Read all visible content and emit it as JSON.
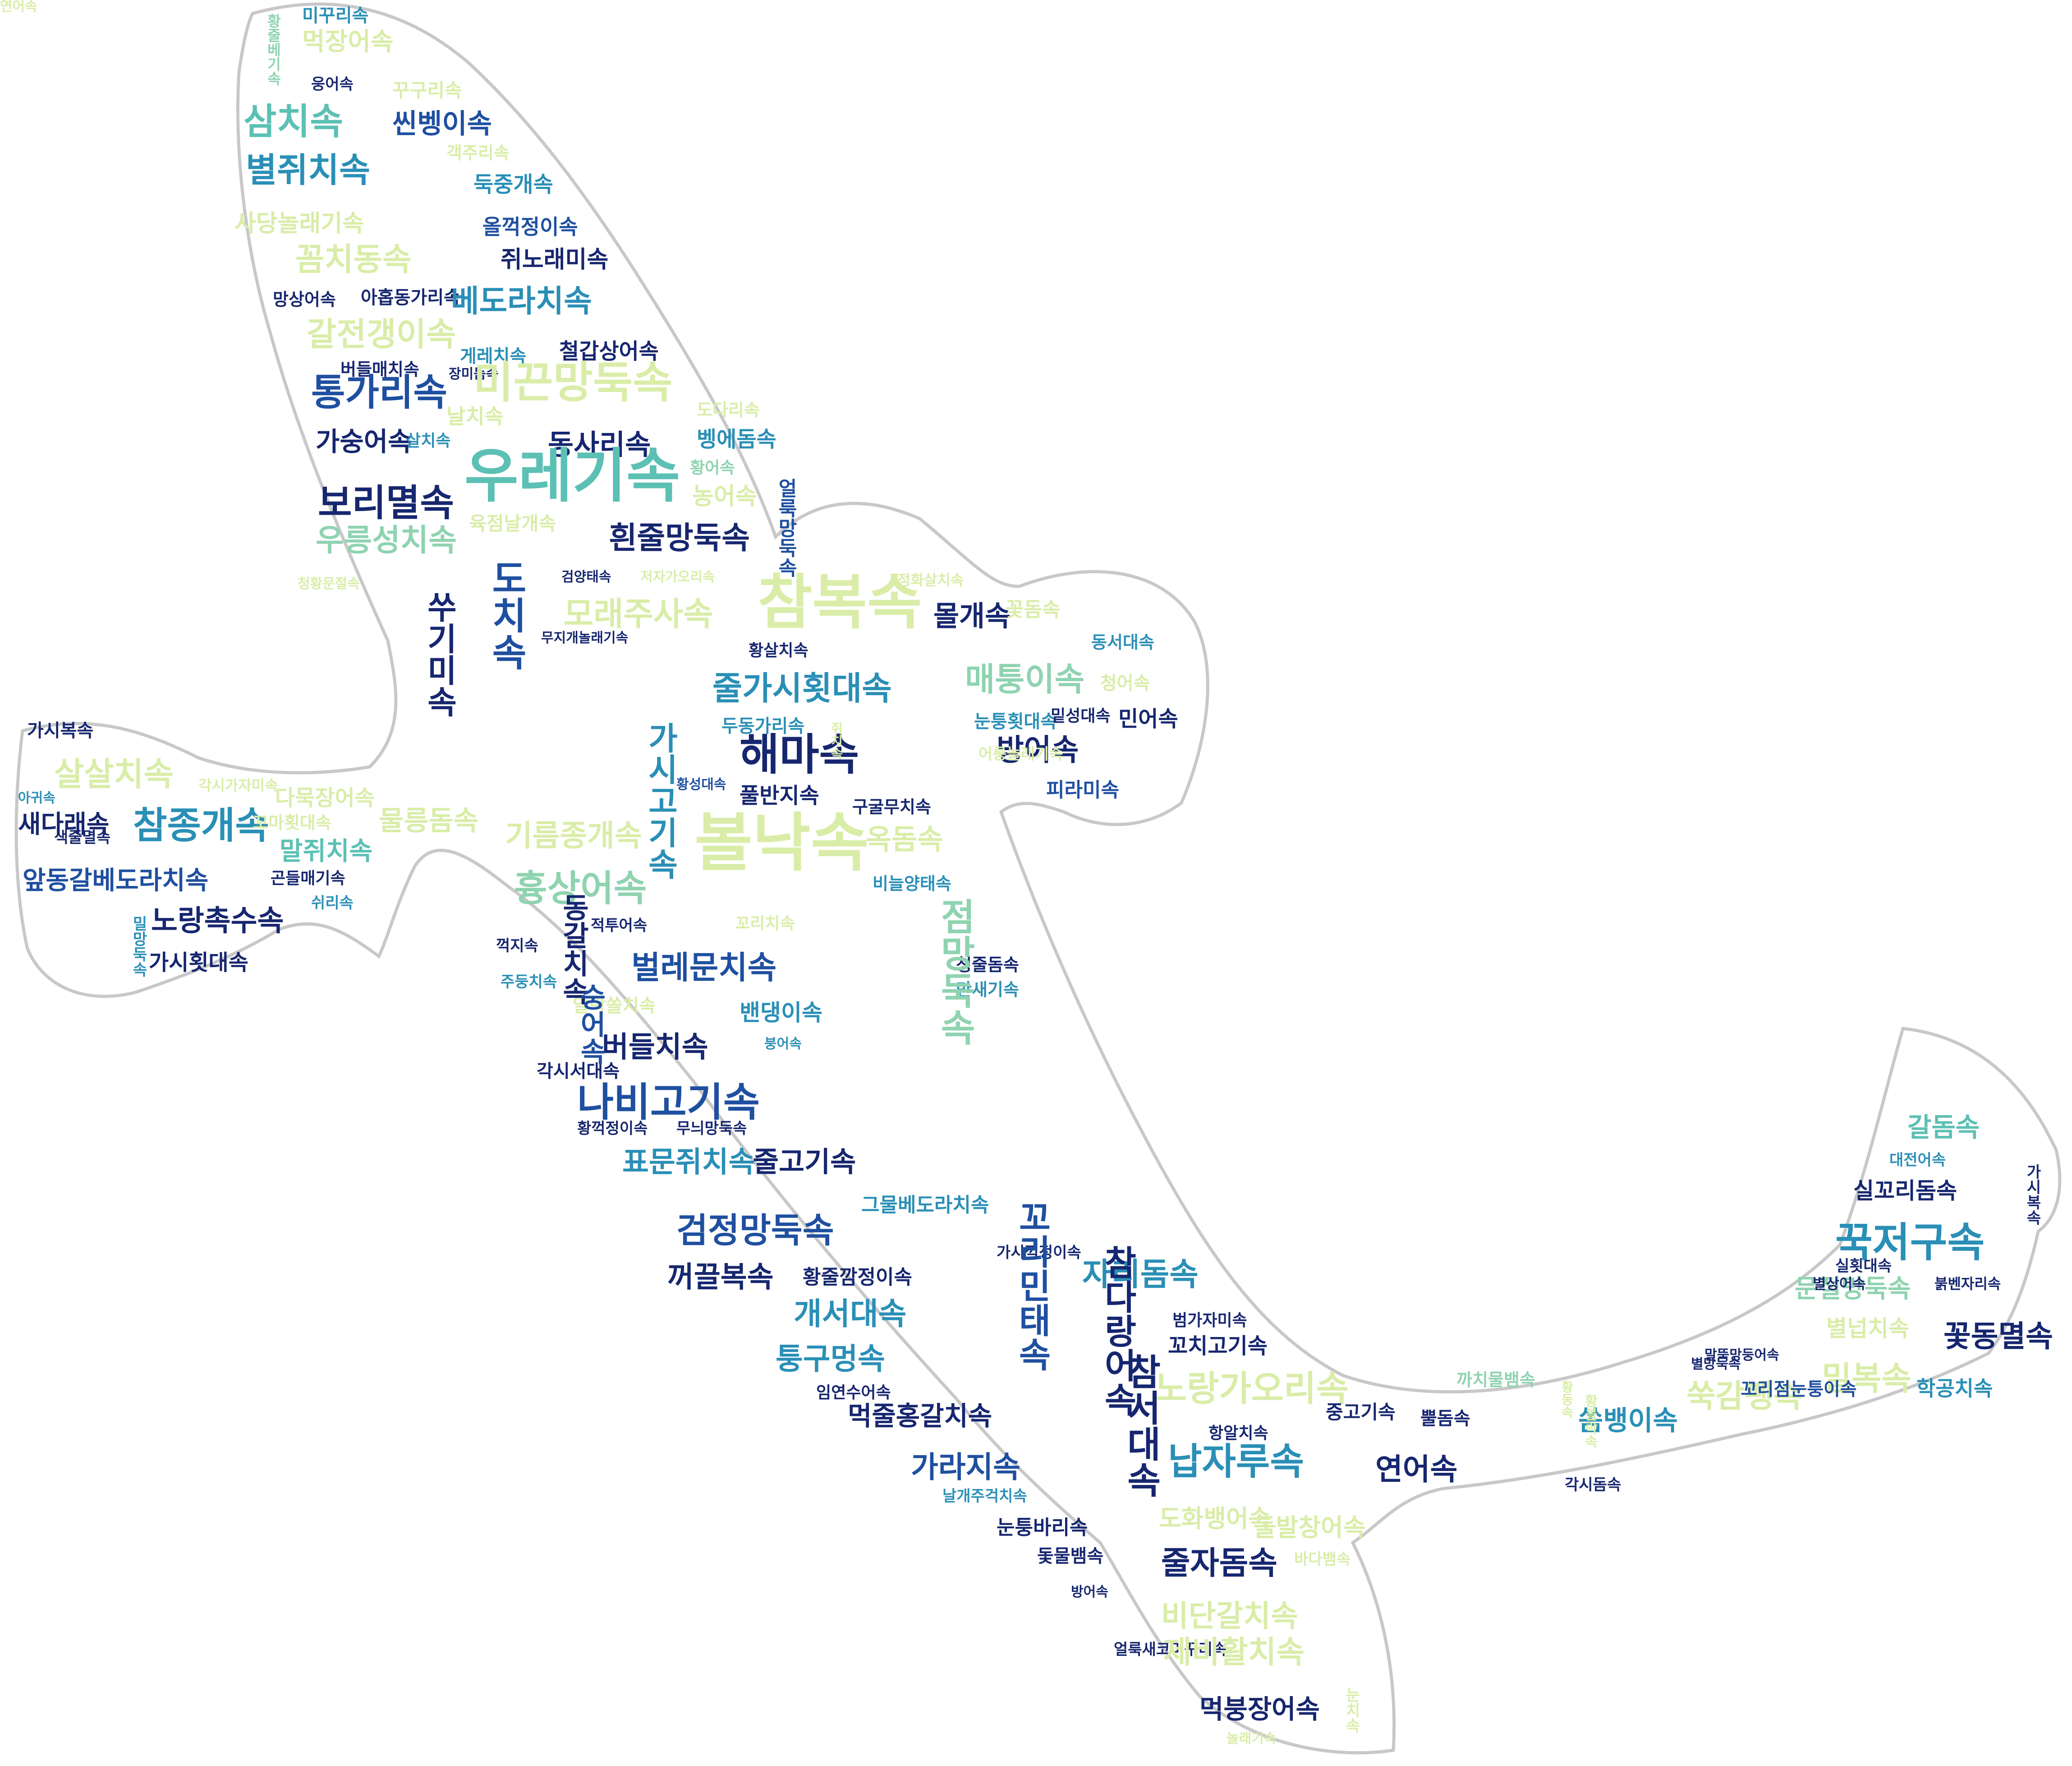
{
  "palette": {
    "navy": "#16266f",
    "blue": "#1f4fa0",
    "teal": "#2a8fb6",
    "mint": "#5cc0b4",
    "green": "#8fd3b0",
    "pale": "#d9eda8"
  },
  "words": [
    {
      "t": "미꾸리속",
      "c": "teal"
    },
    {
      "t": "먹장어속",
      "c": "pale"
    },
    {
      "t": "황줄베기속",
      "c": "green"
    },
    {
      "t": "웅어속",
      "c": "navy"
    },
    {
      "t": "꾸구리속",
      "c": "pale"
    },
    {
      "t": "삼치속",
      "c": "mint"
    },
    {
      "t": "씬벵이속",
      "c": "blue"
    },
    {
      "t": "별쥐치속",
      "c": "teal"
    },
    {
      "t": "객주리속",
      "c": "pale"
    },
    {
      "t": "둑중개속",
      "c": "teal"
    },
    {
      "t": "사당놀래기속",
      "c": "pale"
    },
    {
      "t": "올꺽정이속",
      "c": "blue"
    },
    {
      "t": "꼼치동속",
      "c": "pale"
    },
    {
      "t": "쥐노래미속",
      "c": "navy"
    },
    {
      "t": "망상어속",
      "c": "navy"
    },
    {
      "t": "아홉동가리속",
      "c": "navy"
    },
    {
      "t": "베도라치속",
      "c": "teal"
    },
    {
      "t": "갈전갱이속",
      "c": "pale"
    },
    {
      "t": "버들매치속",
      "c": "navy"
    },
    {
      "t": "게레치속",
      "c": "teal"
    },
    {
      "t": "철갑상어속",
      "c": "navy"
    },
    {
      "t": "장미돔속",
      "c": "navy"
    },
    {
      "t": "통가리속",
      "c": "blue"
    },
    {
      "t": "미끈망둑속",
      "c": "pale"
    },
    {
      "t": "날치속",
      "c": "pale"
    },
    {
      "t": "도다리속",
      "c": "pale"
    },
    {
      "t": "가숭어속",
      "c": "navy"
    },
    {
      "t": "살치속",
      "c": "teal"
    },
    {
      "t": "동사리속",
      "c": "navy"
    },
    {
      "t": "벵에돔속",
      "c": "teal"
    },
    {
      "t": "황어속",
      "c": "green"
    },
    {
      "t": "우레기속",
      "c": "mint"
    },
    {
      "t": "보리멸속",
      "c": "navy"
    },
    {
      "t": "농어속",
      "c": "pale"
    },
    {
      "t": "우릉성치속",
      "c": "green"
    },
    {
      "t": "육점날개속",
      "c": "pale"
    },
    {
      "t": "흰줄망둑속",
      "c": "navy"
    },
    {
      "t": "검양태속",
      "c": "navy"
    },
    {
      "t": "저자가오리속",
      "c": "pale"
    },
    {
      "t": "청황문절속",
      "c": "pale"
    },
    {
      "t": "얼룩망둑속",
      "c": "blue"
    },
    {
      "t": "모래주사속",
      "c": "pale"
    },
    {
      "t": "참복속",
      "c": "pale"
    },
    {
      "t": "정화살치속",
      "c": "pale"
    },
    {
      "t": "몰개속",
      "c": "navy"
    },
    {
      "t": "꽃돔속",
      "c": "pale"
    },
    {
      "t": "동서대속",
      "c": "teal"
    },
    {
      "t": "무지개놀래기속",
      "c": "navy"
    },
    {
      "t": "황살치속",
      "c": "navy"
    },
    {
      "t": "줄가시횟대속",
      "c": "teal"
    },
    {
      "t": "매퉁이속",
      "c": "green"
    },
    {
      "t": "청어속",
      "c": "pale"
    },
    {
      "t": "눈퉁횟대속",
      "c": "teal"
    },
    {
      "t": "밑성대속",
      "c": "navy"
    },
    {
      "t": "민어속",
      "c": "navy"
    },
    {
      "t": "두동가리속",
      "c": "teal"
    },
    {
      "t": "해마속",
      "c": "navy"
    },
    {
      "t": "방어속",
      "c": "navy"
    },
    {
      "t": "어룽놀래기속",
      "c": "pale"
    },
    {
      "t": "피라미속",
      "c": "blue"
    },
    {
      "t": "황성대속",
      "c": "blue"
    },
    {
      "t": "풀반지속",
      "c": "navy"
    },
    {
      "t": "구굴무치속",
      "c": "navy"
    },
    {
      "t": "가시복속",
      "c": "navy"
    },
    {
      "t": "살살치속",
      "c": "pale"
    },
    {
      "t": "각시가자미속",
      "c": "pale"
    },
    {
      "t": "다묵장어속",
      "c": "pale"
    },
    {
      "t": "아귀속",
      "c": "teal"
    },
    {
      "t": "새다래속",
      "c": "navy"
    },
    {
      "t": "참종개속",
      "c": "teal"
    },
    {
      "t": "색줄멸속",
      "c": "navy"
    },
    {
      "t": "꼬마횟대속",
      "c": "pale"
    },
    {
      "t": "말쥐치속",
      "c": "mint"
    },
    {
      "t": "물릉돔속",
      "c": "pale"
    },
    {
      "t": "기름종개속",
      "c": "pale"
    },
    {
      "t": "볼낙속",
      "c": "pale"
    },
    {
      "t": "옥돔속",
      "c": "pale"
    },
    {
      "t": "앞동갈베도라치속",
      "c": "blue"
    },
    {
      "t": "곤들매기속",
      "c": "navy"
    },
    {
      "t": "노랑촉수속",
      "c": "navy"
    },
    {
      "t": "쉬리속",
      "c": "teal"
    },
    {
      "t": "가시횟대속",
      "c": "navy"
    },
    {
      "t": "흉상어속",
      "c": "green"
    },
    {
      "t": "비늘양태속",
      "c": "teal"
    },
    {
      "t": "꼬리치속",
      "c": "pale"
    },
    {
      "t": "적투어속",
      "c": "navy"
    },
    {
      "t": "꺽지속",
      "c": "navy"
    },
    {
      "t": "벌레문치속",
      "c": "blue"
    },
    {
      "t": "청줄돔속",
      "c": "navy"
    },
    {
      "t": "만새기속",
      "c": "teal"
    },
    {
      "t": "주둥치속",
      "c": "teal"
    },
    {
      "t": "알락쏠치속",
      "c": "pale"
    },
    {
      "t": "밴댕이속",
      "c": "teal"
    },
    {
      "t": "버들치속",
      "c": "navy"
    },
    {
      "t": "붕어속",
      "c": "teal"
    },
    {
      "t": "각시서대속",
      "c": "navy"
    },
    {
      "t": "나비고기속",
      "c": "blue"
    },
    {
      "t": "황꺽정이속",
      "c": "navy"
    },
    {
      "t": "무늬망둑속",
      "c": "navy"
    },
    {
      "t": "표문쥐치속",
      "c": "teal"
    },
    {
      "t": "줄고기속",
      "c": "navy"
    },
    {
      "t": "그물베도라치속",
      "c": "teal"
    },
    {
      "t": "검정망둑속",
      "c": "blue"
    },
    {
      "t": "꺼끌복속",
      "c": "navy"
    },
    {
      "t": "황줄깜정이속",
      "c": "navy"
    },
    {
      "t": "가시꺽정이속",
      "c": "navy"
    },
    {
      "t": "자리돔속",
      "c": "teal"
    },
    {
      "t": "개서대속",
      "c": "teal"
    },
    {
      "t": "범가자미속",
      "c": "navy"
    },
    {
      "t": "꼬치고기속",
      "c": "navy"
    },
    {
      "t": "퉁구멍속",
      "c": "teal"
    },
    {
      "t": "노랑가오리속",
      "c": "pale"
    },
    {
      "t": "까치물뱀속",
      "c": "green"
    },
    {
      "t": "임연수어속",
      "c": "navy"
    },
    {
      "t": "먹줄홍갈치속",
      "c": "navy"
    },
    {
      "t": "중고기속",
      "c": "navy"
    },
    {
      "t": "뿔돔속",
      "c": "navy"
    },
    {
      "t": "항알치속",
      "c": "navy"
    },
    {
      "t": "가라지속",
      "c": "blue"
    },
    {
      "t": "납자루속",
      "c": "teal"
    },
    {
      "t": "연어속",
      "c": "navy"
    },
    {
      "t": "날개주걱치속",
      "c": "teal"
    },
    {
      "t": "눈퉁바리속",
      "c": "navy"
    },
    {
      "t": "도화뱅어속",
      "c": "pale"
    },
    {
      "t": "돌발창어속",
      "c": "pale"
    },
    {
      "t": "바다뱀속",
      "c": "pale"
    },
    {
      "t": "돛물뱀속",
      "c": "navy"
    },
    {
      "t": "방어속",
      "c": "navy"
    },
    {
      "t": "줄자돔속",
      "c": "navy"
    },
    {
      "t": "비단갈치속",
      "c": "pale"
    },
    {
      "t": "얼룩새코미꾸리속",
      "c": "navy"
    },
    {
      "t": "제비활치속",
      "c": "pale"
    },
    {
      "t": "먹붕장어속",
      "c": "navy"
    },
    {
      "t": "눈치속",
      "c": "pale"
    },
    {
      "t": "놀래기속",
      "c": "pale"
    },
    {
      "t": "갈돔속",
      "c": "mint"
    },
    {
      "t": "대전어속",
      "c": "teal"
    },
    {
      "t": "실꼬리돔속",
      "c": "navy"
    },
    {
      "t": "꾹저구속",
      "c": "teal"
    },
    {
      "t": "실횟대속",
      "c": "navy"
    },
    {
      "t": "문절망둑속",
      "c": "green"
    },
    {
      "t": "별상어속",
      "c": "navy"
    },
    {
      "t": "붉벤자리속",
      "c": "navy"
    },
    {
      "t": "별넙치속",
      "c": "pale"
    },
    {
      "t": "꽃동멸속",
      "c": "navy"
    },
    {
      "t": "말뚝망둥어속",
      "c": "navy"
    },
    {
      "t": "밀복속",
      "c": "pale"
    },
    {
      "t": "쑥감펭속",
      "c": "pale"
    },
    {
      "t": "꼬리점눈퉁이속",
      "c": "blue"
    },
    {
      "t": "학공치속",
      "c": "teal"
    },
    {
      "t": "별망둑속",
      "c": "navy"
    },
    {
      "t": "쏨뱅이속",
      "c": "teal"
    },
    {
      "t": "각시돔속",
      "c": "navy"
    },
    {
      "t": "가시복속",
      "c": "navy"
    },
    {
      "t": "황동속",
      "c": "pale"
    },
    {
      "t": "밀망둑속",
      "c": "teal"
    },
    {
      "t": "쥐치속",
      "c": "pale"
    },
    {
      "t": "황볼락속",
      "c": "pale"
    },
    {
      "t": "도치속",
      "c": "blue"
    },
    {
      "t": "참서대속",
      "c": "navy"
    },
    {
      "t": "꼬리민태속",
      "c": "blue"
    },
    {
      "t": "쑤기미속",
      "c": "navy"
    },
    {
      "t": "참다랑어속",
      "c": "navy"
    },
    {
      "t": "가시고기속",
      "c": "teal"
    },
    {
      "t": "동갈치속",
      "c": "navy"
    },
    {
      "t": "점망둑속",
      "c": "green"
    },
    {
      "t": "숭어속",
      "c": "blue"
    },
    {
      "t": "연어속",
      "c": "pale"
    }
  ]
}
